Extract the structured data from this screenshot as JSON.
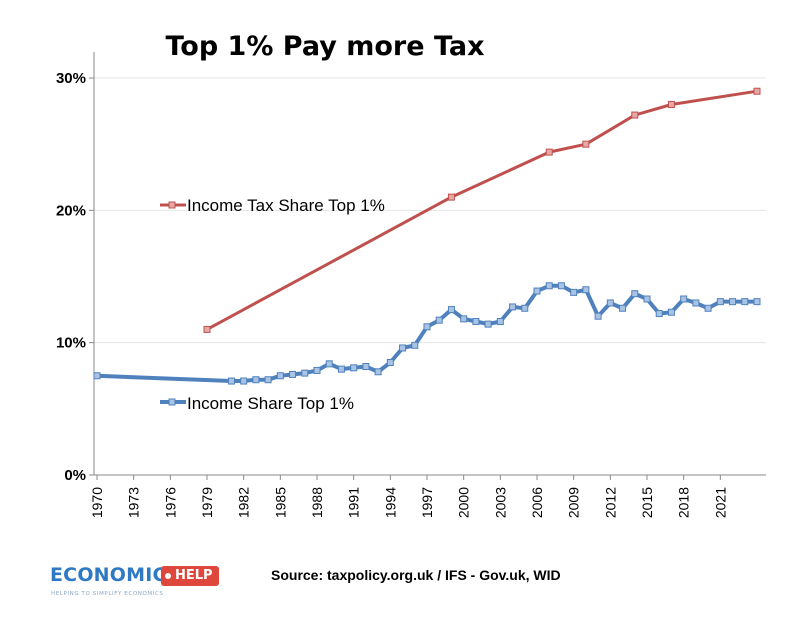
{
  "chart_data": {
    "type": "line",
    "title": "Top 1% Pay more Tax",
    "xlabel": "",
    "ylabel": "",
    "ylim": [
      0,
      30
    ],
    "xlim": [
      1970,
      2024
    ],
    "yticks": [
      "0%",
      "10%",
      "20%",
      "30%"
    ],
    "ytick_values": [
      0,
      10,
      20,
      30
    ],
    "xticks": [
      "1970",
      "1973",
      "1976",
      "1979",
      "1982",
      "1985",
      "1988",
      "1991",
      "1994",
      "1997",
      "2000",
      "2003",
      "2006",
      "2009",
      "2012",
      "2015",
      "2018",
      "2021"
    ],
    "grid": "horizontal",
    "series": [
      {
        "name": "Income Tax Share Top 1%",
        "color": "#c0504d",
        "x": [
          1979,
          1999,
          2007,
          2010,
          2014,
          2017,
          2024
        ],
        "values": [
          11.0,
          21.0,
          24.4,
          25.0,
          27.2,
          28.0,
          29.0
        ]
      },
      {
        "name": "Income Share Top 1%",
        "color": "#4f81bd",
        "x": [
          1970,
          1981,
          1982,
          1983,
          1984,
          1985,
          1986,
          1987,
          1988,
          1989,
          1990,
          1991,
          1992,
          1993,
          1994,
          1995,
          1996,
          1997,
          1998,
          1999,
          2000,
          2001,
          2002,
          2003,
          2004,
          2005,
          2006,
          2007,
          2008,
          2009,
          2010,
          2011,
          2012,
          2013,
          2014,
          2015,
          2016,
          2017,
          2018,
          2019,
          2020,
          2021,
          2022,
          2023,
          2024
        ],
        "values": [
          7.5,
          7.1,
          7.1,
          7.2,
          7.2,
          7.5,
          7.6,
          7.7,
          7.9,
          8.4,
          8.0,
          8.1,
          8.2,
          7.8,
          8.5,
          9.6,
          9.8,
          11.2,
          11.7,
          12.5,
          11.8,
          11.6,
          11.4,
          11.6,
          12.7,
          12.6,
          13.9,
          14.3,
          14.3,
          13.8,
          14.0,
          12.0,
          13.0,
          12.6,
          13.7,
          13.3,
          12.2,
          12.3,
          13.3,
          13.0,
          12.6,
          13.1,
          13.1,
          13.1,
          13.1
        ]
      }
    ],
    "legend": [
      {
        "label": "Income Tax Share Top 1%",
        "placement": "inline-upper-left"
      },
      {
        "label": "Income Share Top 1%",
        "placement": "inline-lower-left"
      }
    ]
  },
  "source_text": "Source: taxpolicy.org.uk / IFS - Gov.uk, WID",
  "logo": {
    "main": "ECONOMICS",
    "badge": "HELP",
    "tagline": "HELPING TO SIMPLIFY ECONOMICS",
    "color_blue": "#2f79c4",
    "color_red": "#e0473c"
  }
}
